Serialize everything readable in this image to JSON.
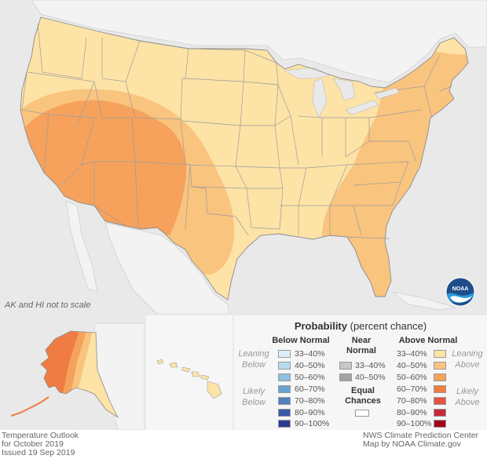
{
  "map": {
    "scale_note": "AK and HI not to scale",
    "logo_text": "NOAA"
  },
  "legend": {
    "title": "Probability",
    "subtitle": "(percent chance)",
    "below_header": "Below Normal",
    "near_header": "Near Normal",
    "above_header": "Above Normal",
    "leaning_below": "Leaning Below",
    "likely_below": "Likely Below",
    "leaning_above": "Leaning Above",
    "likely_above": "Likely Above",
    "equal_chances": "Equal Chances",
    "below": [
      {
        "label": "33–40%",
        "color": "#dbeefa"
      },
      {
        "label": "40–50%",
        "color": "#b7d9ee"
      },
      {
        "label": "50–60%",
        "color": "#8fc1e0"
      },
      {
        "label": "60–70%",
        "color": "#6aa3cf"
      },
      {
        "label": "70–80%",
        "color": "#4f81bd"
      },
      {
        "label": "80–90%",
        "color": "#3a5aa8"
      },
      {
        "label": "90–100%",
        "color": "#2b3990"
      }
    ],
    "near": [
      {
        "label": "33–40%",
        "color": "#c7c7c7"
      },
      {
        "label": "40–50%",
        "color": "#a3a3a3"
      }
    ],
    "above": [
      {
        "label": "33–40%",
        "color": "#fde3a6"
      },
      {
        "label": "40–50%",
        "color": "#f9c47e"
      },
      {
        "label": "50–60%",
        "color": "#f6a25c"
      },
      {
        "label": "60–70%",
        "color": "#ef7c42"
      },
      {
        "label": "70–80%",
        "color": "#e5533a"
      },
      {
        "label": "80–90%",
        "color": "#c8283a"
      },
      {
        "label": "90–100%",
        "color": "#a3001e"
      }
    ]
  },
  "footer": {
    "left_line1": "Temperature Outlook",
    "left_line2": "for October 2019",
    "left_line3": "Issued 19 Sep 2019",
    "right_line1": "NWS Climate Prediction Center",
    "right_line2": "Map by NOAA Climate.gov"
  }
}
